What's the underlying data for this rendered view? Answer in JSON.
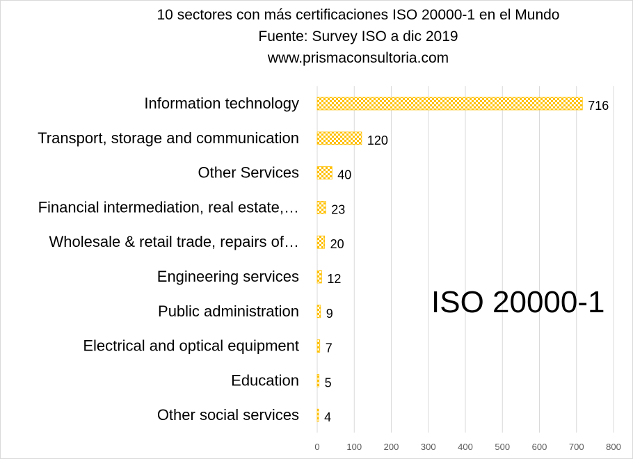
{
  "title_lines": [
    "10 sectores con más certificaciones ISO 20000-1 en el Mundo",
    "Fuente: Survey ISO a dic 2019",
    "www.prismaconsultoria.com"
  ],
  "overlay_text": "ISO 20000-1",
  "colors": {
    "bar": "#FFC000",
    "bar_pattern_bg": "#ffffff",
    "grid": "#d9d9d9"
  },
  "chart_data": {
    "type": "bar",
    "orientation": "horizontal",
    "title": "10 sectores con más certificaciones ISO 20000-1 en el Mundo",
    "categories": [
      "Information technology",
      "Transport, storage and communication",
      "Other Services",
      "Financial intermediation, real estate,…",
      "Wholesale & retail trade, repairs of…",
      "Engineering services",
      "Public administration",
      "Electrical and optical equipment",
      "Education",
      "Other social services"
    ],
    "values": [
      716,
      120,
      40,
      23,
      20,
      12,
      9,
      7,
      5,
      4
    ],
    "xlim": [
      0,
      800
    ],
    "xticks": [
      0,
      100,
      200,
      300,
      400,
      500,
      600,
      700,
      800
    ],
    "grid": true,
    "data_labels": true
  }
}
